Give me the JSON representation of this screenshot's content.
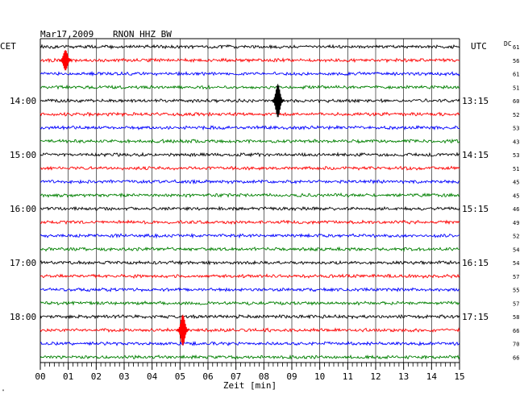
{
  "header": {
    "date": "Mar17,2009",
    "station": "RNON HHZ BW",
    "left_zone": "CET",
    "right_zone": "UTC",
    "dc_label": "DC"
  },
  "footer": {
    "xlabel": "Zeit [min]",
    "corner_mark": "\""
  },
  "colors": {
    "cycle": [
      "#000000",
      "#ff0000",
      "#0000ff",
      "#008000"
    ],
    "grid": "#000000",
    "background": "#ffffff"
  },
  "chart_data": {
    "type": "line",
    "title": "Mar17,2009 RNON HHZ BW",
    "xlabel": "Zeit [min]",
    "xlim": [
      0,
      15
    ],
    "x_ticks": [
      "00",
      "01",
      "02",
      "03",
      "04",
      "05",
      "06",
      "07",
      "08",
      "09",
      "10",
      "11",
      "12",
      "13",
      "14",
      "15"
    ],
    "rows": 24,
    "left_time_labels": [
      {
        "row": 4,
        "label": "14:00"
      },
      {
        "row": 8,
        "label": "15:00"
      },
      {
        "row": 12,
        "label": "16:00"
      },
      {
        "row": 16,
        "label": "17:00"
      },
      {
        "row": 20,
        "label": "18:00"
      }
    ],
    "right_time_labels": [
      {
        "row": 4,
        "label": "13:15"
      },
      {
        "row": 8,
        "label": "14:15"
      },
      {
        "row": 12,
        "label": "15:15"
      },
      {
        "row": 16,
        "label": "16:15"
      },
      {
        "row": 20,
        "label": "17:15"
      }
    ],
    "dc_values": [
      61,
      56,
      61,
      51,
      60,
      52,
      53,
      43,
      53,
      51,
      45,
      45,
      46,
      49,
      52,
      54,
      54,
      57,
      55,
      57,
      58,
      66,
      70,
      66
    ],
    "events": [
      {
        "row": 1,
        "minute": 0.9,
        "amplitude": 1.6
      },
      {
        "row": 4,
        "minute": 8.5,
        "amplitude": 2.6
      },
      {
        "row": 21,
        "minute": 5.1,
        "amplitude": 2.4
      }
    ],
    "grid": true
  }
}
